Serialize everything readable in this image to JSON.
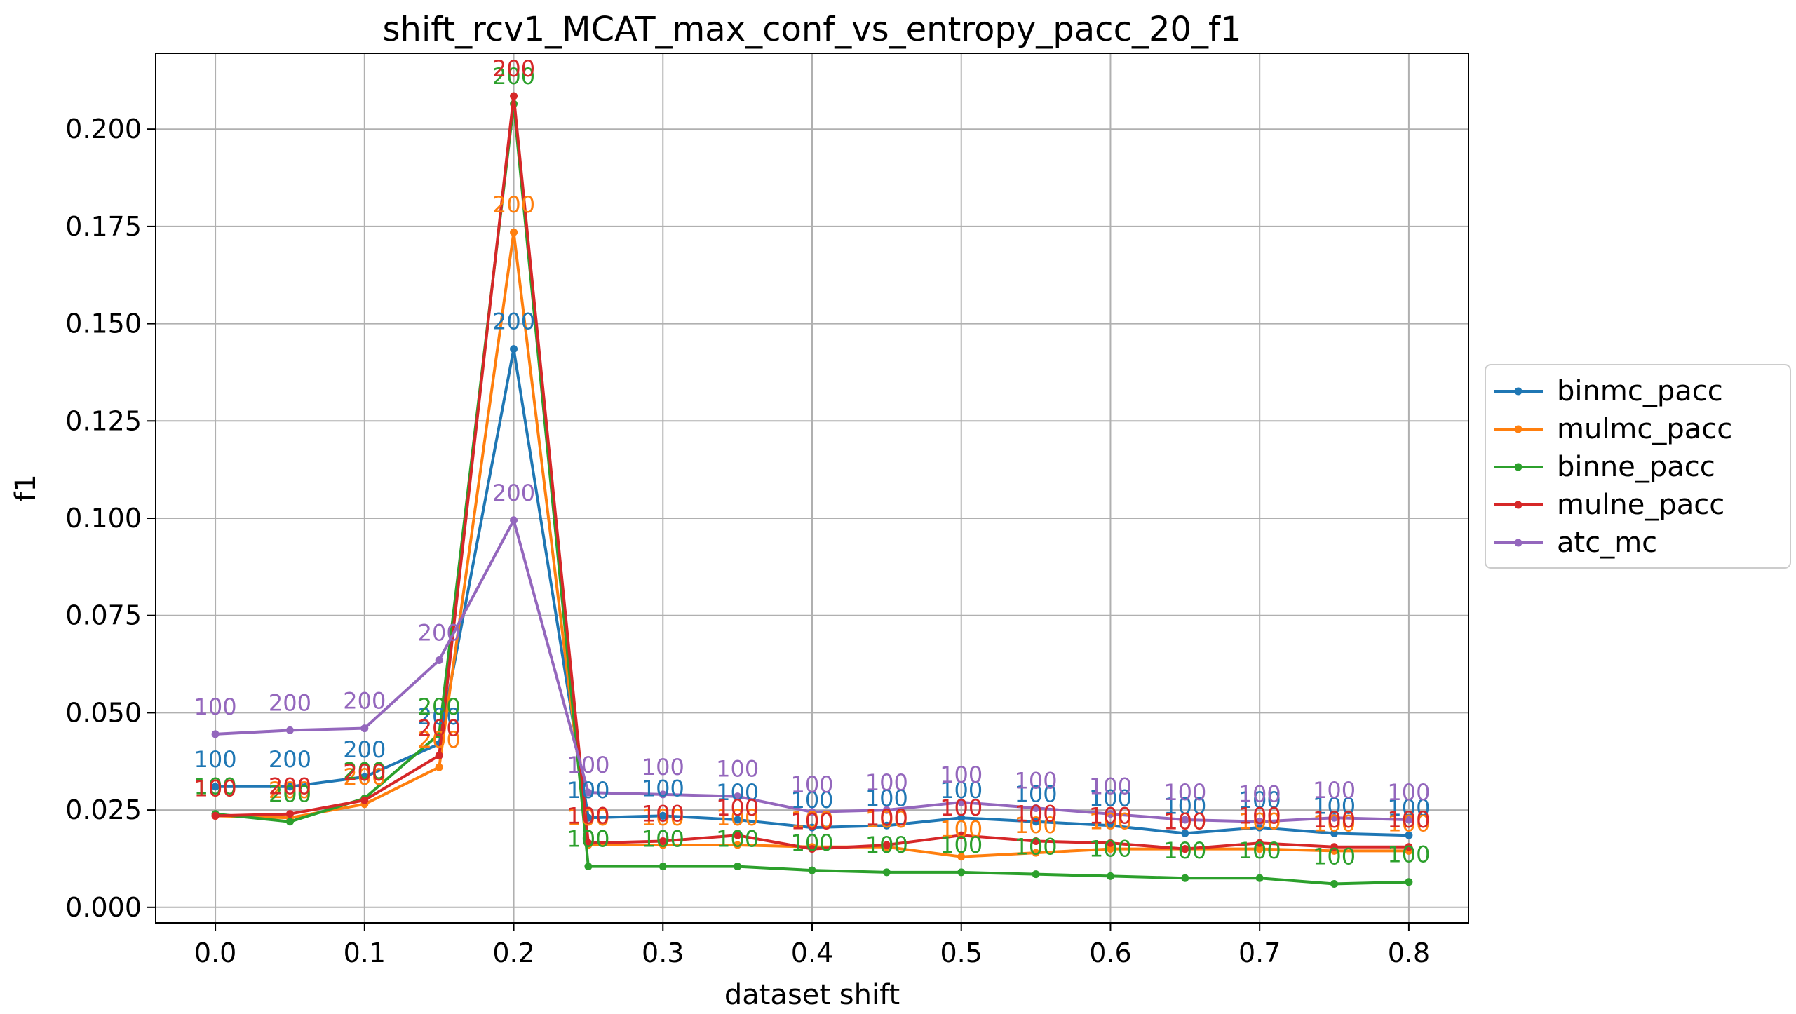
{
  "chart_data": {
    "type": "line",
    "title": "shift_rcv1_MCAT_max_conf_vs_entropy_pacc_20_f1",
    "xlabel": "dataset shift",
    "ylabel": "f1",
    "xlim": [
      -0.04,
      0.84
    ],
    "ylim": [
      -0.004,
      0.2195
    ],
    "xticks": [
      0.0,
      0.1,
      0.2,
      0.3,
      0.4,
      0.5,
      0.6,
      0.7,
      0.8
    ],
    "xtick_labels": [
      "0.0",
      "0.1",
      "0.2",
      "0.3",
      "0.4",
      "0.5",
      "0.6",
      "0.7",
      "0.8"
    ],
    "yticks": [
      0.0,
      0.025,
      0.05,
      0.075,
      0.1,
      0.125,
      0.15,
      0.175,
      0.2
    ],
    "ytick_labels": [
      "0.000",
      "0.025",
      "0.050",
      "0.075",
      "0.100",
      "0.125",
      "0.150",
      "0.175",
      "0.200"
    ],
    "grid": true,
    "legend_position": "outside-right",
    "x": [
      0.0,
      0.05,
      0.1,
      0.15,
      0.2,
      0.25,
      0.3,
      0.35,
      0.4,
      0.45,
      0.5,
      0.55,
      0.6,
      0.65,
      0.7,
      0.75,
      0.8
    ],
    "series": [
      {
        "name": "binmc_pacc",
        "color": "#1f77b4",
        "values": [
          0.031,
          0.031,
          0.0335,
          0.042,
          0.1435,
          0.023,
          0.0235,
          0.0225,
          0.0205,
          0.021,
          0.023,
          0.022,
          0.021,
          0.019,
          0.0205,
          0.019,
          0.0185
        ],
        "point_labels": [
          "100",
          "200",
          "200",
          "200",
          "200",
          "100",
          "100",
          "100",
          "100",
          "100",
          "100",
          "100",
          "100",
          "100",
          "100",
          "100",
          "100"
        ]
      },
      {
        "name": "mulmc_pacc",
        "color": "#ff7f0e",
        "values": [
          0.0235,
          0.023,
          0.0265,
          0.036,
          0.1735,
          0.016,
          0.016,
          0.016,
          0.0155,
          0.0155,
          0.013,
          0.014,
          0.015,
          0.015,
          0.015,
          0.0145,
          0.0145
        ],
        "point_labels": [
          "100",
          "200",
          "200",
          "200",
          "200",
          "100",
          "100",
          "100",
          "100",
          "100",
          "100",
          "100",
          "100",
          "100",
          "100",
          "100",
          "100"
        ]
      },
      {
        "name": "binne_pacc",
        "color": "#2ca02c",
        "values": [
          0.024,
          0.022,
          0.028,
          0.0445,
          0.2065,
          0.0105,
          0.0105,
          0.0105,
          0.0095,
          0.009,
          0.009,
          0.0085,
          0.008,
          0.0075,
          0.0075,
          0.006,
          0.0065
        ],
        "point_labels": [
          "100",
          "200",
          "200",
          "200",
          "200",
          "100",
          "100",
          "100",
          "100",
          "100",
          "100",
          "100",
          "100",
          "100",
          "100",
          "100",
          "100"
        ]
      },
      {
        "name": "mulne_pacc",
        "color": "#d62728",
        "values": [
          0.0235,
          0.024,
          0.0275,
          0.039,
          0.2085,
          0.0165,
          0.017,
          0.0185,
          0.015,
          0.016,
          0.0185,
          0.017,
          0.0165,
          0.015,
          0.0165,
          0.0155,
          0.0155
        ],
        "point_labels": [
          "100",
          "200",
          "200",
          "200",
          "200",
          "100",
          "100",
          "100",
          "100",
          "100",
          "100",
          "100",
          "100",
          "100",
          "100",
          "100",
          "100"
        ]
      },
      {
        "name": "atc_mc",
        "color": "#9467bd",
        "values": [
          0.0445,
          0.0455,
          0.046,
          0.0635,
          0.0995,
          0.0295,
          0.029,
          0.0285,
          0.0245,
          0.025,
          0.027,
          0.0255,
          0.024,
          0.0225,
          0.022,
          0.023,
          0.0225
        ],
        "point_labels": [
          "100",
          "200",
          "200",
          "200",
          "200",
          "100",
          "100",
          "100",
          "100",
          "100",
          "100",
          "100",
          "100",
          "100",
          "100",
          "100",
          "100"
        ]
      }
    ]
  }
}
